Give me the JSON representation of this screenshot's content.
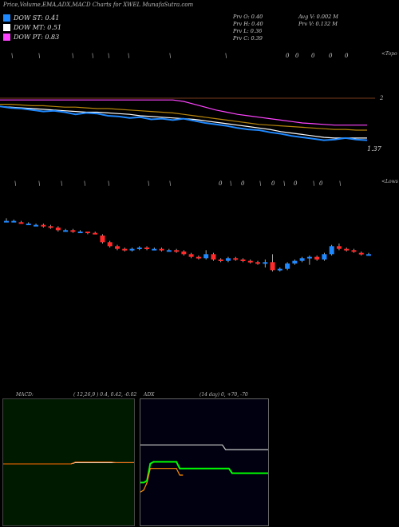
{
  "header": {
    "title": "Price,Volume,EMA,ADX,MACD Charts for XWEL MunafaSutra.com",
    "legend": [
      {
        "label": "DOW ST: 0.41",
        "color": "#1e88ff"
      },
      {
        "label": "DOW MT: 0.51",
        "color": "#ffffff"
      },
      {
        "label": "DOW PT: 0.83",
        "color": "#ff44ff"
      }
    ],
    "prev": {
      "open": "Prv  O: 0.40",
      "high": "Prv  H: 0.40",
      "low": "Prv  L: 0.36",
      "close": "Prv  C: 0.39"
    },
    "avg": {
      "avg_vol": "Avg V: 0.002  M",
      "prev_vol": "Prv  V: 0.132  M"
    }
  },
  "labels": {
    "topo": "<Topo",
    "lows": "<Lows",
    "level_2": "2",
    "level_137": "1.37"
  },
  "chart_data": [
    {
      "type": "line",
      "name": "price-ema-panel",
      "series": [
        {
          "name": "EMA long",
          "color": "#ff44ff",
          "values": [
            2.02,
            2.02,
            2.02,
            2.02,
            2.02,
            2.02,
            2.02,
            2.02,
            2.02,
            2.02,
            2.02,
            2.02,
            2.02,
            2.02,
            2.02,
            2.02,
            2.02,
            2.0,
            1.96,
            1.92,
            1.88,
            1.85,
            1.82,
            1.8,
            1.78,
            1.76,
            1.74,
            1.72,
            1.7,
            1.69,
            1.68,
            1.67,
            1.67,
            1.67,
            1.67
          ]
        },
        {
          "name": "EMA mid",
          "color": "#b8860b",
          "values": [
            1.96,
            1.96,
            1.95,
            1.94,
            1.94,
            1.93,
            1.92,
            1.92,
            1.91,
            1.9,
            1.9,
            1.89,
            1.88,
            1.87,
            1.86,
            1.85,
            1.84,
            1.82,
            1.8,
            1.78,
            1.76,
            1.74,
            1.72,
            1.7,
            1.68,
            1.67,
            1.66,
            1.65,
            1.64,
            1.63,
            1.62,
            1.61,
            1.61,
            1.6,
            1.6
          ]
        },
        {
          "name": "EMA short",
          "color": "#ffffff",
          "values": [
            1.93,
            1.92,
            1.91,
            1.9,
            1.89,
            1.88,
            1.87,
            1.86,
            1.85,
            1.85,
            1.84,
            1.83,
            1.82,
            1.8,
            1.79,
            1.78,
            1.77,
            1.76,
            1.75,
            1.73,
            1.71,
            1.69,
            1.67,
            1.65,
            1.63,
            1.61,
            1.58,
            1.56,
            1.54,
            1.52,
            1.5,
            1.49,
            1.49,
            1.49,
            1.49
          ]
        },
        {
          "name": "Price",
          "color": "#1e88ff",
          "values": [
            1.93,
            1.91,
            1.9,
            1.88,
            1.86,
            1.87,
            1.85,
            1.82,
            1.84,
            1.83,
            1.8,
            1.79,
            1.77,
            1.78,
            1.75,
            1.76,
            1.74,
            1.76,
            1.73,
            1.7,
            1.68,
            1.66,
            1.63,
            1.61,
            1.6,
            1.57,
            1.55,
            1.52,
            1.5,
            1.48,
            1.46,
            1.47,
            1.49,
            1.47,
            1.46
          ]
        }
      ],
      "ylim": [
        1.3,
        2.1
      ]
    },
    {
      "type": "candlestick",
      "name": "price-candles",
      "candles": [
        {
          "o": 0.95,
          "c": 0.95,
          "h": 0.97,
          "l": 0.94
        },
        {
          "o": 0.95,
          "c": 0.95,
          "h": 0.96,
          "l": 0.94
        },
        {
          "o": 0.94,
          "c": 0.93,
          "h": 0.95,
          "l": 0.93
        },
        {
          "o": 0.93,
          "c": 0.93,
          "h": 0.94,
          "l": 0.92
        },
        {
          "o": 0.92,
          "c": 0.92,
          "h": 0.93,
          "l": 0.91
        },
        {
          "o": 0.92,
          "c": 0.91,
          "h": 0.93,
          "l": 0.9
        },
        {
          "o": 0.91,
          "c": 0.9,
          "h": 0.92,
          "l": 0.89
        },
        {
          "o": 0.9,
          "c": 0.88,
          "h": 0.91,
          "l": 0.87
        },
        {
          "o": 0.88,
          "c": 0.88,
          "h": 0.89,
          "l": 0.87
        },
        {
          "o": 0.88,
          "c": 0.87,
          "h": 0.89,
          "l": 0.86
        },
        {
          "o": 0.87,
          "c": 0.87,
          "h": 0.88,
          "l": 0.86
        },
        {
          "o": 0.87,
          "c": 0.86,
          "h": 0.87,
          "l": 0.85
        },
        {
          "o": 0.86,
          "c": 0.85,
          "h": 0.87,
          "l": 0.85
        },
        {
          "o": 0.84,
          "c": 0.79,
          "h": 0.85,
          "l": 0.78
        },
        {
          "o": 0.79,
          "c": 0.76,
          "h": 0.8,
          "l": 0.75
        },
        {
          "o": 0.76,
          "c": 0.74,
          "h": 0.77,
          "l": 0.73
        },
        {
          "o": 0.74,
          "c": 0.73,
          "h": 0.75,
          "l": 0.72
        },
        {
          "o": 0.73,
          "c": 0.74,
          "h": 0.75,
          "l": 0.72
        },
        {
          "o": 0.74,
          "c": 0.75,
          "h": 0.76,
          "l": 0.73
        },
        {
          "o": 0.75,
          "c": 0.74,
          "h": 0.76,
          "l": 0.73
        },
        {
          "o": 0.74,
          "c": 0.74,
          "h": 0.75,
          "l": 0.73
        },
        {
          "o": 0.74,
          "c": 0.73,
          "h": 0.75,
          "l": 0.72
        },
        {
          "o": 0.73,
          "c": 0.73,
          "h": 0.74,
          "l": 0.72
        },
        {
          "o": 0.73,
          "c": 0.72,
          "h": 0.74,
          "l": 0.71
        },
        {
          "o": 0.72,
          "c": 0.7,
          "h": 0.73,
          "l": 0.69
        },
        {
          "o": 0.7,
          "c": 0.68,
          "h": 0.71,
          "l": 0.67
        },
        {
          "o": 0.68,
          "c": 0.67,
          "h": 0.69,
          "l": 0.66
        },
        {
          "o": 0.67,
          "c": 0.7,
          "h": 0.73,
          "l": 0.66
        },
        {
          "o": 0.7,
          "c": 0.66,
          "h": 0.71,
          "l": 0.65
        },
        {
          "o": 0.66,
          "c": 0.65,
          "h": 0.67,
          "l": 0.64
        },
        {
          "o": 0.65,
          "c": 0.67,
          "h": 0.68,
          "l": 0.64
        },
        {
          "o": 0.67,
          "c": 0.66,
          "h": 0.68,
          "l": 0.65
        },
        {
          "o": 0.66,
          "c": 0.65,
          "h": 0.67,
          "l": 0.64
        },
        {
          "o": 0.65,
          "c": 0.64,
          "h": 0.66,
          "l": 0.63
        },
        {
          "o": 0.64,
          "c": 0.63,
          "h": 0.65,
          "l": 0.62
        },
        {
          "o": 0.63,
          "c": 0.64,
          "h": 0.66,
          "l": 0.6
        },
        {
          "o": 0.64,
          "c": 0.58,
          "h": 0.7,
          "l": 0.57
        },
        {
          "o": 0.58,
          "c": 0.59,
          "h": 0.6,
          "l": 0.57
        },
        {
          "o": 0.59,
          "c": 0.63,
          "h": 0.64,
          "l": 0.58
        },
        {
          "o": 0.63,
          "c": 0.65,
          "h": 0.66,
          "l": 0.62
        },
        {
          "o": 0.65,
          "c": 0.67,
          "h": 0.68,
          "l": 0.64
        },
        {
          "o": 0.67,
          "c": 0.68,
          "h": 0.69,
          "l": 0.62
        },
        {
          "o": 0.68,
          "c": 0.66,
          "h": 0.69,
          "l": 0.65
        },
        {
          "o": 0.66,
          "c": 0.7,
          "h": 0.71,
          "l": 0.65
        },
        {
          "o": 0.7,
          "c": 0.76,
          "h": 0.77,
          "l": 0.69
        },
        {
          "o": 0.76,
          "c": 0.74,
          "h": 0.78,
          "l": 0.73
        },
        {
          "o": 0.74,
          "c": 0.73,
          "h": 0.75,
          "l": 0.72
        },
        {
          "o": 0.73,
          "c": 0.72,
          "h": 0.74,
          "l": 0.71
        },
        {
          "o": 0.71,
          "c": 0.7,
          "h": 0.72,
          "l": 0.69
        },
        {
          "o": 0.7,
          "c": 0.7,
          "h": 0.71,
          "l": 0.69
        }
      ],
      "ylim": [
        0.45,
        1.05
      ]
    },
    {
      "type": "line",
      "name": "macd",
      "title": "MACD:",
      "params": "( 12,26,9 ) 0.4,  0.42,  -0.02",
      "series": [
        {
          "name": "MACD",
          "color": "#ffffff",
          "values": [
            0,
            0,
            0,
            0,
            0,
            0,
            0,
            0,
            0,
            0,
            0,
            0,
            0,
            0,
            0,
            0,
            0.02,
            0.02,
            0.02,
            0.02,
            0.02,
            0.02,
            0.02,
            0.02,
            0.02,
            0.02,
            0.02,
            0.02,
            0.02,
            0.02
          ]
        },
        {
          "name": "Signal",
          "color": "#ff6a00",
          "values": [
            0,
            0,
            0,
            0,
            0,
            0,
            0,
            0,
            0,
            0,
            0,
            0,
            0,
            0,
            0,
            0,
            0.03,
            0.03,
            0.03,
            0.03,
            0.03,
            0.03,
            0.03,
            0.03,
            0.03,
            0.02,
            0.02,
            0.02,
            0.02,
            0.02
          ]
        }
      ],
      "ylim": [
        -1,
        1
      ]
    },
    {
      "type": "line",
      "name": "adx",
      "title": "ADX",
      "params": "(14  day) 0,  +70,  -70",
      "series": [
        {
          "name": "+DI",
          "color": "#00ff00",
          "values": [
            20,
            20,
            22,
            40,
            42,
            42,
            42,
            42,
            42,
            42,
            42,
            42,
            35,
            35,
            35,
            35,
            35,
            35,
            35,
            35,
            35,
            35,
            35,
            35,
            35,
            35,
            35,
            35,
            30,
            30,
            30,
            30,
            30,
            30,
            30,
            30,
            30,
            30,
            30,
            30
          ]
        },
        {
          "name": "-DI",
          "color": "#ff8c00",
          "values": [
            10,
            12,
            20,
            35,
            35,
            35,
            35,
            35,
            35,
            35,
            35,
            35,
            28,
            28
          ]
        },
        {
          "name": "ADX",
          "color": "#cccccc",
          "values": [
            60,
            60,
            60,
            60,
            60,
            60,
            60,
            60,
            60,
            60,
            60,
            60,
            60,
            60,
            60,
            60,
            60,
            60,
            60,
            60,
            60,
            60,
            60,
            60,
            60,
            60,
            55,
            55,
            55,
            55,
            55,
            55,
            55,
            55,
            55,
            55,
            55,
            55,
            55,
            55
          ]
        }
      ],
      "ylim": [
        0,
        100
      ]
    }
  ]
}
